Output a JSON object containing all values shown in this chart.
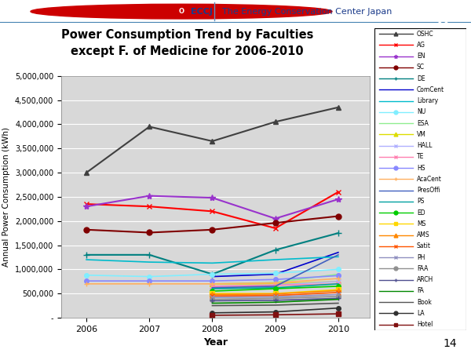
{
  "title_line1": "Power Consumption Trend by Faculties",
  "title_line2": "except F. of Medicine for 2006-2010",
  "xlabel": "Year",
  "ylabel": "Annual Power Consumption (kWh)",
  "years": [
    2006,
    2007,
    2008,
    2009,
    2010
  ],
  "legend_names": [
    "OSHC",
    "AG",
    "EN",
    "SC",
    "DE",
    "ComCent",
    "Library",
    "NU",
    "ESA",
    "VM",
    "HALL",
    "TE",
    "HS",
    "AcaCent",
    "PresOffi",
    "PS",
    "ED",
    "MS",
    "AMS",
    "Satit",
    "PH",
    "FAA",
    "ARCH",
    "FA",
    "Book",
    "LA",
    "Hotel"
  ],
  "series": [
    {
      "name": "OSHC",
      "color": "#404040",
      "marker": "^",
      "lw": 1.5,
      "ms": 5,
      "values": [
        3000000,
        3950000,
        3650000,
        4050000,
        4350000
      ]
    },
    {
      "name": "AG",
      "color": "#FF0000",
      "marker": "x",
      "lw": 1.5,
      "ms": 5,
      "values": [
        2350000,
        2300000,
        2200000,
        1850000,
        2600000
      ]
    },
    {
      "name": "EN",
      "color": "#9933CC",
      "marker": "*",
      "lw": 1.5,
      "ms": 6,
      "values": [
        2300000,
        2520000,
        2480000,
        2050000,
        2450000
      ]
    },
    {
      "name": "SC",
      "color": "#800000",
      "marker": "o",
      "lw": 1.5,
      "ms": 5,
      "values": [
        1820000,
        1760000,
        1820000,
        1960000,
        2100000
      ]
    },
    {
      "name": "DE",
      "color": "#008080",
      "marker": "+",
      "lw": 1.5,
      "ms": 6,
      "values": [
        1300000,
        1300000,
        900000,
        1400000,
        1750000
      ]
    },
    {
      "name": "ComCent",
      "color": "#0000CC",
      "marker": "None",
      "lw": 1.2,
      "ms": 4,
      "values": [
        null,
        null,
        850000,
        900000,
        1350000
      ]
    },
    {
      "name": "Library",
      "color": "#00BBCC",
      "marker": "None",
      "lw": 1.2,
      "ms": 4,
      "values": [
        1200000,
        1150000,
        1130000,
        1200000,
        1260000
      ]
    },
    {
      "name": "NU",
      "color": "#80EEFF",
      "marker": "o",
      "lw": 1.2,
      "ms": 4,
      "values": [
        880000,
        850000,
        900000,
        920000,
        1000000
      ]
    },
    {
      "name": "ESA",
      "color": "#90EE90",
      "marker": "None",
      "lw": 1.2,
      "ms": 4,
      "values": [
        null,
        null,
        700000,
        730000,
        900000
      ]
    },
    {
      "name": "VM",
      "color": "#DDDD00",
      "marker": "^",
      "lw": 1.2,
      "ms": 4,
      "values": [
        null,
        null,
        700000,
        700000,
        750000
      ]
    },
    {
      "name": "HALL",
      "color": "#B0B0FF",
      "marker": "x",
      "lw": 1.2,
      "ms": 4,
      "values": [
        null,
        null,
        650000,
        680000,
        750000
      ]
    },
    {
      "name": "TE",
      "color": "#FF80B0",
      "marker": "x",
      "lw": 1.2,
      "ms": 4,
      "values": [
        null,
        null,
        650000,
        670000,
        700000
      ]
    },
    {
      "name": "HS",
      "color": "#8888FF",
      "marker": "o",
      "lw": 1.2,
      "ms": 4,
      "values": [
        760000,
        760000,
        760000,
        790000,
        870000
      ]
    },
    {
      "name": "AcaCent",
      "color": "#FFB060",
      "marker": "+",
      "lw": 1.2,
      "ms": 5,
      "values": [
        700000,
        700000,
        700000,
        720000,
        810000
      ]
    },
    {
      "name": "PresOffi",
      "color": "#4060C0",
      "marker": "None",
      "lw": 1.2,
      "ms": 4,
      "values": [
        null,
        null,
        620000,
        650000,
        1300000
      ]
    },
    {
      "name": "PS",
      "color": "#00A0A0",
      "marker": "None",
      "lw": 1.2,
      "ms": 4,
      "values": [
        null,
        null,
        600000,
        620000,
        700000
      ]
    },
    {
      "name": "ED",
      "color": "#00CC00",
      "marker": "o",
      "lw": 1.2,
      "ms": 4,
      "values": [
        null,
        null,
        550000,
        600000,
        650000
      ]
    },
    {
      "name": "MS",
      "color": "#FFD700",
      "marker": "s",
      "lw": 1.2,
      "ms": 4,
      "values": [
        null,
        null,
        500000,
        500000,
        580000
      ]
    },
    {
      "name": "AMS",
      "color": "#FF8800",
      "marker": "^",
      "lw": 1.2,
      "ms": 4,
      "values": [
        null,
        null,
        480000,
        490000,
        560000
      ]
    },
    {
      "name": "Satit",
      "color": "#FF5500",
      "marker": "x",
      "lw": 1.2,
      "ms": 4,
      "values": [
        null,
        null,
        450000,
        460000,
        520000
      ]
    },
    {
      "name": "PH",
      "color": "#9090C0",
      "marker": "x",
      "lw": 1.2,
      "ms": 4,
      "values": [
        null,
        null,
        420000,
        430000,
        480000
      ]
    },
    {
      "name": "FAA",
      "color": "#909090",
      "marker": "o",
      "lw": 1.2,
      "ms": 4,
      "values": [
        null,
        null,
        380000,
        400000,
        440000
      ]
    },
    {
      "name": "ARCH",
      "color": "#505090",
      "marker": "+",
      "lw": 1.2,
      "ms": 4,
      "values": [
        null,
        null,
        350000,
        360000,
        400000
      ]
    },
    {
      "name": "FA",
      "color": "#008800",
      "marker": "None",
      "lw": 1.2,
      "ms": 4,
      "values": [
        null,
        null,
        300000,
        320000,
        380000
      ]
    },
    {
      "name": "Book",
      "color": "#555555",
      "marker": "None",
      "lw": 1.2,
      "ms": 4,
      "values": [
        null,
        null,
        250000,
        260000,
        300000
      ]
    },
    {
      "name": "LA",
      "color": "#303030",
      "marker": "o",
      "lw": 1.2,
      "ms": 4,
      "values": [
        null,
        null,
        100000,
        120000,
        200000
      ]
    },
    {
      "name": "Hotel",
      "color": "#801010",
      "marker": "s",
      "lw": 1.2,
      "ms": 4,
      "values": [
        null,
        null,
        50000,
        60000,
        80000
      ]
    }
  ],
  "yticks": [
    0,
    500000,
    1000000,
    1500000,
    2000000,
    2500000,
    3000000,
    3500000,
    4000000,
    4500000,
    5000000
  ],
  "ytick_labels": [
    "-",
    "500,000",
    "1,000,000",
    "1,500,000",
    "2,000,000",
    "2,500,000",
    "3,000,000",
    "3,500,000",
    "4,000,000",
    "4,500,000",
    "5,000,000"
  ],
  "header_bg": "#C8E8F0",
  "plot_bg": "#D8D8D8",
  "title_bg": "#D8EEF8",
  "page_number": "14"
}
